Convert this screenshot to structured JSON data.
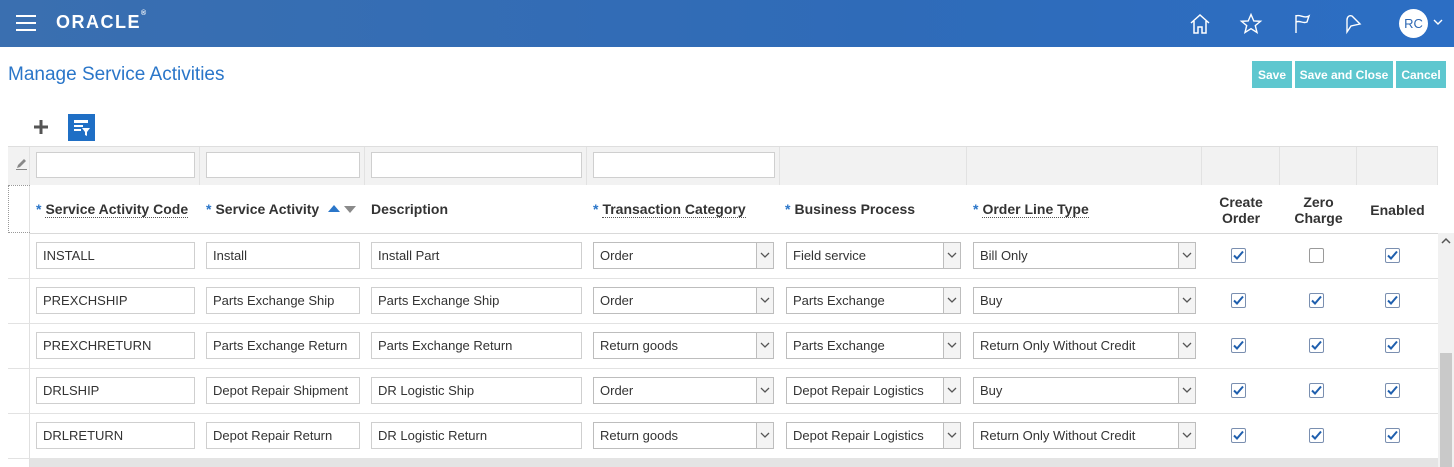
{
  "header": {
    "brand": "ORACLE",
    "brand_mark": "®",
    "user_initials": "RC",
    "icons": [
      "home-icon",
      "star-icon",
      "flag-icon",
      "notifications-icon"
    ]
  },
  "page": {
    "title": "Manage Service Activities"
  },
  "actions": {
    "save": "Save",
    "save_and_close": "Save and Close",
    "cancel": "Cancel"
  },
  "table": {
    "columns": {
      "code": "Service Activity Code",
      "activity": "Service Activity",
      "description": "Description",
      "transaction_category": "Transaction Category",
      "business_process": "Business Process",
      "order_line_type": "Order Line Type",
      "create_order": "Create Order",
      "zero_charge": "Zero Charge",
      "enabled": "Enabled"
    },
    "required_marker": "*",
    "rows": [
      {
        "code": "INSTALL",
        "activity": "Install",
        "description": "Install Part",
        "transaction_category": "Order",
        "business_process": "Field service",
        "order_line_type": "Bill Only",
        "create_order": true,
        "zero_charge": false,
        "enabled": true
      },
      {
        "code": "PREXCHSHIP",
        "activity": "Parts Exchange Ship",
        "description": "Parts Exchange Ship",
        "transaction_category": "Order",
        "business_process": "Parts Exchange",
        "order_line_type": "Buy",
        "create_order": true,
        "zero_charge": true,
        "enabled": true
      },
      {
        "code": "PREXCHRETURN",
        "activity": "Parts Exchange Return",
        "description": "Parts Exchange Return",
        "transaction_category": "Return goods",
        "business_process": "Parts Exchange",
        "order_line_type": "Return Only Without Credit",
        "create_order": true,
        "zero_charge": true,
        "enabled": true
      },
      {
        "code": "DRLSHIP",
        "activity": "Depot Repair Shipment",
        "description": "DR Logistic Ship",
        "transaction_category": "Order",
        "business_process": "Depot Repair Logistics",
        "order_line_type": "Buy",
        "create_order": true,
        "zero_charge": true,
        "enabled": true
      },
      {
        "code": "DRLRETURN",
        "activity": "Depot Repair Return",
        "description": "DR Logistic Return",
        "transaction_category": "Return goods",
        "business_process": "Depot Repair Logistics",
        "order_line_type": "Return Only Without Credit",
        "create_order": true,
        "zero_charge": true,
        "enabled": true
      }
    ]
  },
  "colors": {
    "header": "#2f6bb8",
    "accent": "#2a76c9",
    "button": "#5ec7cf",
    "filter_button": "#1f6fc5"
  }
}
